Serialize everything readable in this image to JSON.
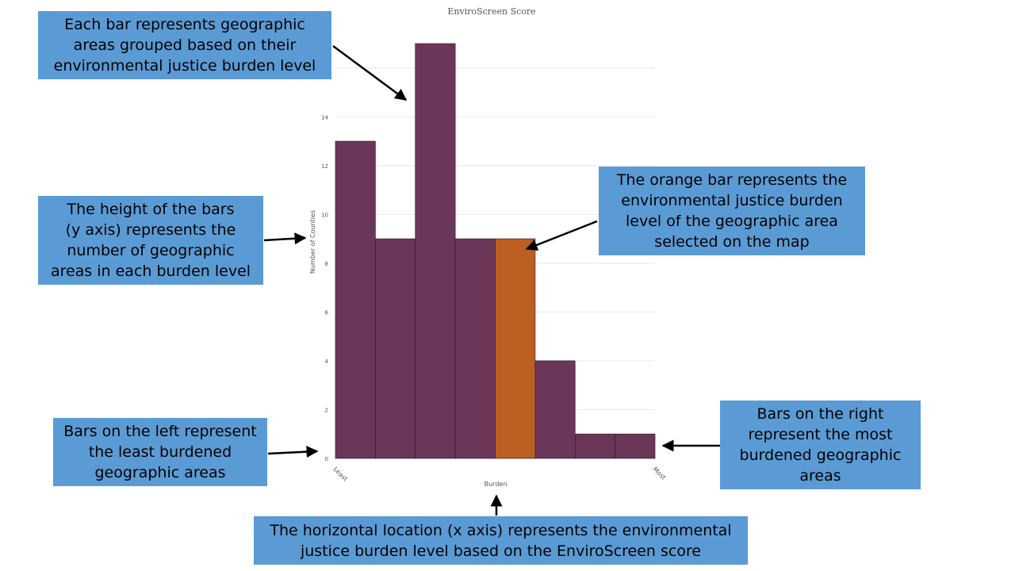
{
  "chart_data": {
    "type": "bar",
    "title": "EnviroScreen Score",
    "xlabel": "Burden",
    "ylabel": "Number of Counties",
    "x_ticks": [
      "Least",
      "Most"
    ],
    "values": [
      13,
      9,
      17,
      9,
      9,
      4,
      1,
      1
    ],
    "highlight_index": 4,
    "ylim": [
      0,
      17
    ],
    "yticks": [
      0,
      2,
      4,
      6,
      8,
      10,
      12,
      14,
      16
    ],
    "grid": true,
    "colors": {
      "bar": "#6b3658",
      "highlight": "#bc5f22",
      "grid": "#e8e8e8"
    }
  },
  "callouts": {
    "top": "Each bar represents geographic\nareas grouped based on their\nenvironmental justice burden level",
    "height": "The height of the bars\n(y axis) represents the\nnumber of geographic\nareas in each burden level",
    "orange": "The orange bar represents the\nenvironmental justice burden\nlevel of the geographic area\nselected on the map",
    "left": "Bars on the left represent\nthe least burdened\ngeographic areas",
    "right": "Bars on the right\nrepresent the most\nburdened geographic\nareas",
    "bottom": "The horizontal location (x axis) represents the environmental\njustice burden level based on the EnviroScreen score"
  },
  "colors": {
    "callout_bg": "#5b9bd5",
    "arrow": "#000000"
  }
}
